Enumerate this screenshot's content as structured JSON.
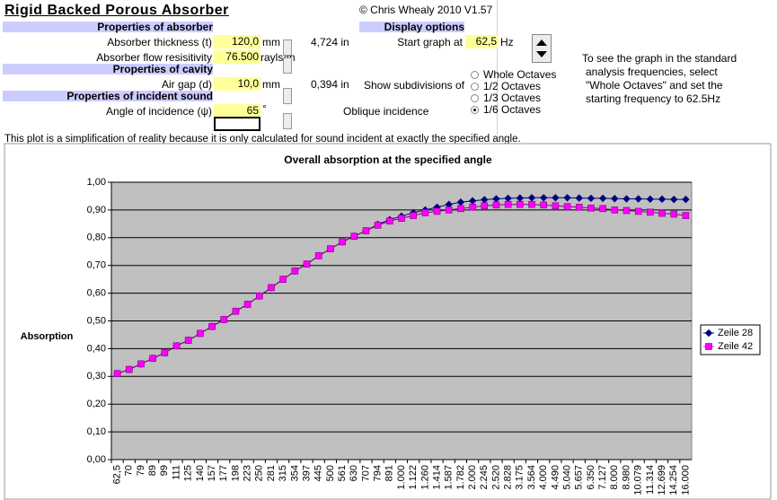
{
  "header": {
    "title": "Rigid Backed Porous Absorber",
    "copyright": "© Chris Whealy  2010  V1.57"
  },
  "form": {
    "absorber_header": "Properties of absorber",
    "thickness_label": "Absorber thickness (t)",
    "thickness_value": "120,0",
    "thickness_unit": "mm",
    "thickness_inches": "4,724 in",
    "flow_label": "Absorber flow resisitivity",
    "flow_value": "76.500",
    "flow_unit": "rayls/m",
    "cavity_header": "Properties of cavity",
    "gap_label": "Air gap (d)",
    "gap_value": "10,0",
    "gap_unit": "mm",
    "gap_inches": "0,394 in",
    "sound_header": "Properties of incident sound",
    "angle_label": "Angle of incidence (ψ)",
    "angle_value": "65",
    "angle_unit": "°",
    "incidence_type": "Oblique incidence",
    "display_header": "Display options",
    "start_label": "Start graph at",
    "start_value": "62,5",
    "start_unit": "Hz",
    "subdivision_label": "Show subdivisions of",
    "subdivisions": [
      "Whole Octaves",
      "1/2 Octaves",
      "1/3 Octaves",
      "1/6 Octaves"
    ],
    "selected_subdivision": 3,
    "hint": [
      "To see the graph in the standard",
      "analysis frequencies, select",
      "\"Whole Octaves\" and set the",
      "starting frequency to 62.5Hz"
    ],
    "note": "This plot is a simplification of reality because it is only calculated for sound incident at exactly the specified angle."
  },
  "chart_data": {
    "type": "line",
    "title": "Overall absorption at the specified angle",
    "y_label": "Absorption",
    "categories": [
      "62,5",
      "70",
      "79",
      "89",
      "99",
      "111",
      "125",
      "140",
      "157",
      "177",
      "198",
      "223",
      "250",
      "281",
      "315",
      "354",
      "397",
      "445",
      "500",
      "561",
      "630",
      "707",
      "794",
      "891",
      "1.000",
      "1.122",
      "1.260",
      "1.414",
      "1.587",
      "1.782",
      "2.000",
      "2.245",
      "2.520",
      "2.828",
      "3.175",
      "3.564",
      "4.000",
      "4.490",
      "5.040",
      "5.657",
      "6.350",
      "7.127",
      "8.000",
      "8.980",
      "10.079",
      "11.314",
      "12.699",
      "14.254",
      "16.000"
    ],
    "series": [
      {
        "name": "Zeile 28",
        "color": "#000080",
        "marker": "diamond",
        "values": [
          0.31,
          0.325,
          0.345,
          0.365,
          0.385,
          0.41,
          0.43,
          0.455,
          0.48,
          0.505,
          0.535,
          0.56,
          0.59,
          0.62,
          0.65,
          0.68,
          0.705,
          0.735,
          0.76,
          0.785,
          0.805,
          0.825,
          0.848,
          0.865,
          0.878,
          0.89,
          0.9,
          0.91,
          0.92,
          0.928,
          0.933,
          0.937,
          0.94,
          0.942,
          0.943,
          0.944,
          0.944,
          0.944,
          0.944,
          0.943,
          0.942,
          0.942,
          0.941,
          0.94,
          0.94,
          0.939,
          0.939,
          0.938,
          0.938
        ]
      },
      {
        "name": "Zeile 42",
        "color": "#ff00ff",
        "marker": "square",
        "values": [
          0.31,
          0.325,
          0.345,
          0.365,
          0.385,
          0.41,
          0.43,
          0.455,
          0.48,
          0.505,
          0.535,
          0.56,
          0.59,
          0.62,
          0.65,
          0.68,
          0.705,
          0.735,
          0.76,
          0.785,
          0.805,
          0.825,
          0.845,
          0.86,
          0.87,
          0.88,
          0.89,
          0.895,
          0.9,
          0.905,
          0.91,
          0.915,
          0.918,
          0.92,
          0.92,
          0.92,
          0.918,
          0.915,
          0.912,
          0.91,
          0.907,
          0.905,
          0.9,
          0.898,
          0.895,
          0.892,
          0.888,
          0.885,
          0.88
        ]
      }
    ],
    "ylim": [
      0,
      1
    ],
    "yticks": [
      {
        "value": 0,
        "label": "0,00"
      },
      {
        "value": 0.1,
        "label": "0,10"
      },
      {
        "value": 0.2,
        "label": "0,20"
      },
      {
        "value": 0.3,
        "label": "0,30"
      },
      {
        "value": 0.4,
        "label": "0,40"
      },
      {
        "value": 0.5,
        "label": "0,50"
      },
      {
        "value": 0.6,
        "label": "0,60"
      },
      {
        "value": 0.7,
        "label": "0,70"
      },
      {
        "value": 0.8,
        "label": "0,80"
      },
      {
        "value": 0.9,
        "label": "0,90"
      },
      {
        "value": 1,
        "label": "1,00"
      }
    ],
    "grid": true,
    "plot_background": "#c0c0c0",
    "legend": "right"
  }
}
